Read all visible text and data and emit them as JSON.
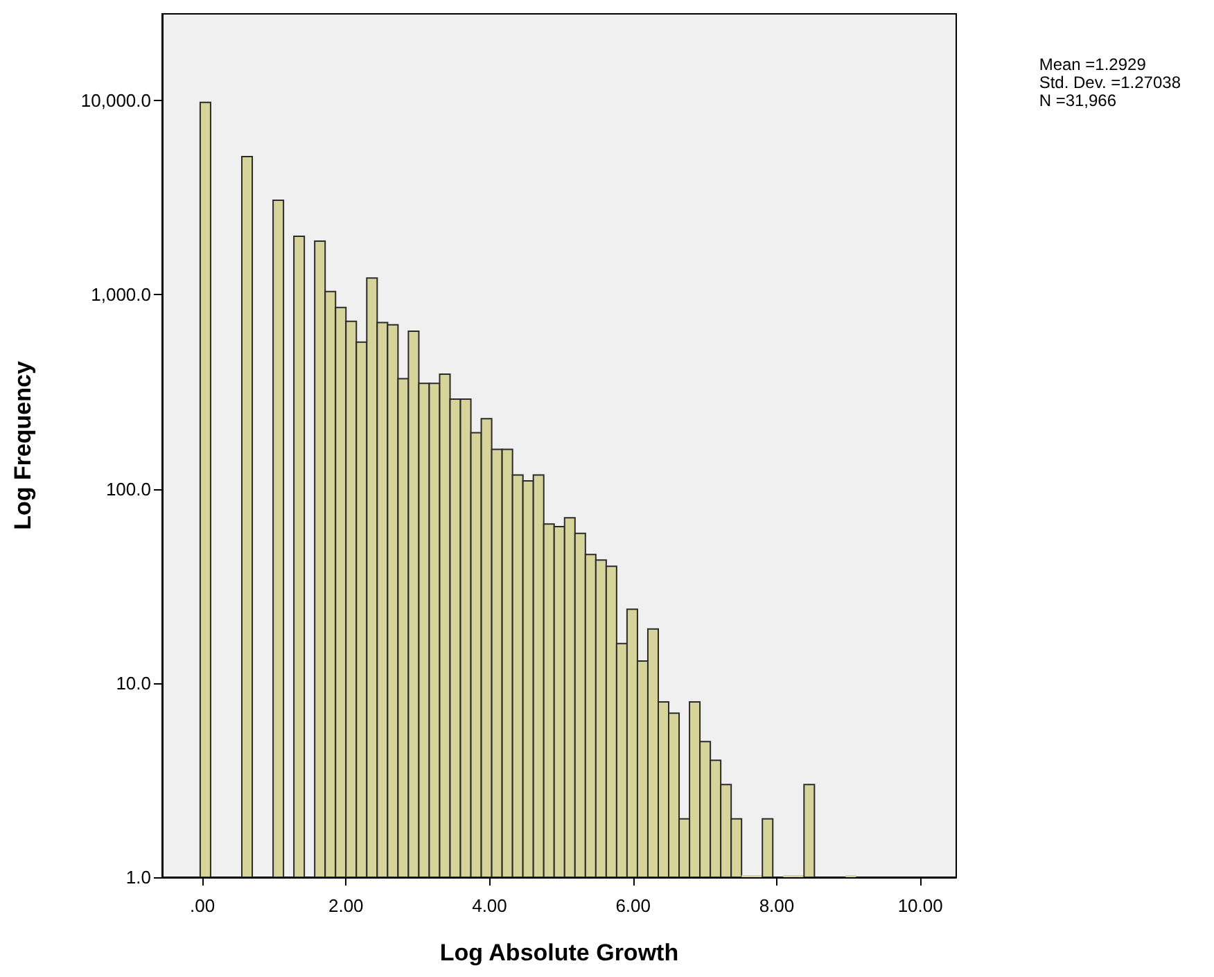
{
  "chart_data": {
    "type": "histogram",
    "xlabel": "Log Absolute Growth",
    "ylabel": "Log Frequency",
    "annotations": [
      "Mean =1.2929",
      "Std. Dev. =1.27038",
      "N =31,966"
    ],
    "bins": [
      -0.03,
      0.115,
      0.26,
      0.405,
      0.55,
      0.695,
      0.84,
      0.985,
      1.13,
      1.275,
      1.42,
      1.565,
      1.71,
      1.855,
      2.0,
      2.145,
      2.29,
      2.435,
      2.58,
      2.725,
      2.87,
      3.015,
      3.16,
      3.305,
      3.45,
      3.595,
      3.74,
      3.885,
      4.03,
      4.175,
      4.32,
      4.465,
      4.61,
      4.755,
      4.9,
      5.045,
      5.19,
      5.335,
      5.48,
      5.625,
      5.77,
      5.915,
      6.06,
      6.205,
      6.35,
      6.495,
      6.64,
      6.785,
      6.93,
      7.075,
      7.22,
      7.365,
      7.51,
      7.655,
      7.8,
      7.945,
      8.09,
      8.235,
      8.38,
      8.525,
      8.67,
      8.815,
      8.96,
      9.105
    ],
    "values": [
      9800,
      null,
      null,
      null,
      5150,
      null,
      null,
      3070,
      null,
      2000,
      null,
      1890,
      1040,
      860,
      730,
      570,
      1220,
      720,
      700,
      370,
      650,
      350,
      350,
      390,
      290,
      290,
      195,
      230,
      160,
      160,
      118,
      110,
      118,
      66,
      64,
      71,
      59,
      46,
      43,
      40,
      16,
      24,
      13,
      19,
      8,
      7,
      2,
      8,
      5,
      4,
      3,
      2,
      1,
      1,
      2,
      null,
      1,
      1,
      3,
      null,
      null,
      null,
      1
    ],
    "color": "#d6d39b",
    "xlim": [
      -0.56,
      10.5
    ],
    "xticks": [
      {
        "value": 0,
        "label": ".00"
      },
      {
        "value": 2,
        "label": "2.00"
      },
      {
        "value": 4,
        "label": "4.00"
      },
      {
        "value": 6,
        "label": "6.00"
      },
      {
        "value": 8,
        "label": "8.00"
      },
      {
        "value": 10,
        "label": "10.00"
      }
    ],
    "ylim": [
      1,
      28000
    ],
    "yticks": [
      {
        "value": 1,
        "label": "1.0"
      },
      {
        "value": 10,
        "label": "10.0"
      },
      {
        "value": 100,
        "label": "100.0"
      },
      {
        "value": 1000,
        "label": "1,000.0"
      },
      {
        "value": 10000,
        "label": "10,000.0"
      }
    ],
    "log": "y"
  }
}
